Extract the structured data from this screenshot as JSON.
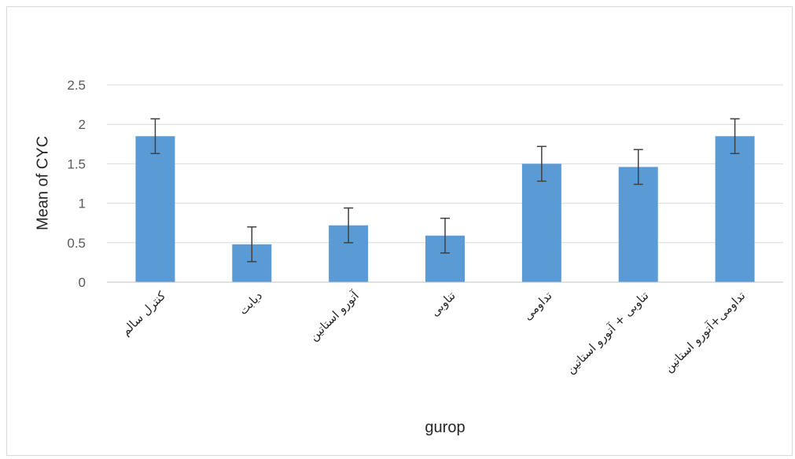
{
  "chart_data": {
    "type": "bar",
    "title": "",
    "xlabel": "gurop",
    "ylabel": "Mean of CYC",
    "ylim": [
      0,
      2.5
    ],
    "yticks": [
      0,
      0.5,
      1,
      1.5,
      2,
      2.5
    ],
    "ytick_labels": [
      "0",
      "0.5",
      "1",
      "1.5",
      "2",
      "2.5"
    ],
    "grid": true,
    "legend": "none",
    "bar_color": "#5B9BD5",
    "gridline_color": "#d9d9d9",
    "errorbar_color": "#404040",
    "categories": [
      "کنترل سالم",
      "دیابت",
      "آتورو استاتین",
      "تناوبی",
      "تداومی",
      "تناوبی + آتورو استاتین",
      "تداومی+آتورو استاتین"
    ],
    "values": [
      1.85,
      0.48,
      0.72,
      0.59,
      1.5,
      1.46,
      1.85
    ],
    "errors": [
      0.22,
      0.22,
      0.22,
      0.22,
      0.22,
      0.22,
      0.22
    ]
  }
}
